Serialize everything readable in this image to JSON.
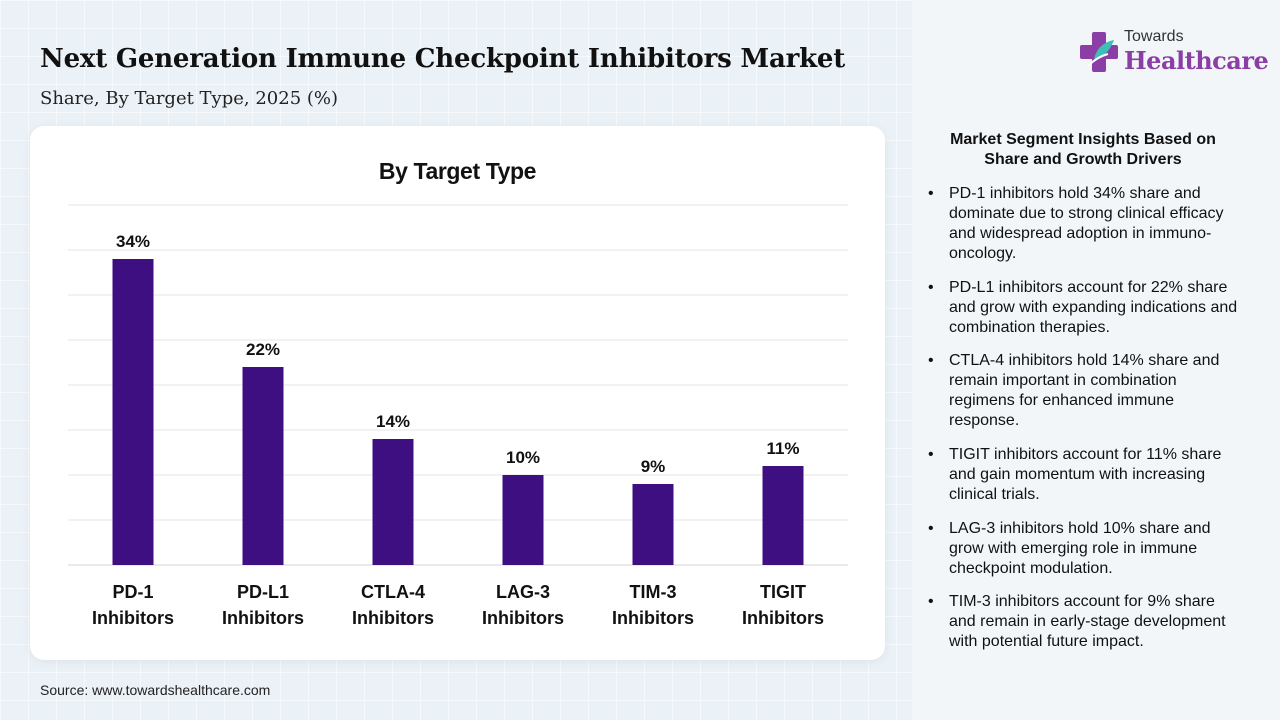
{
  "header": {
    "title": "Next Generation Immune Checkpoint Inhibitors Market",
    "subtitle": "Share, By Target Type, 2025 (%)"
  },
  "logo": {
    "small_text": "Towards",
    "big_text": "Healthcare",
    "icon": "medical-cross-icon",
    "colors": {
      "purple": "#8a3ea6",
      "teal": "#3dbfb8"
    }
  },
  "chart_data": {
    "type": "bar",
    "title": "By Target Type",
    "categories": [
      [
        "PD-1",
        "Inhibitors"
      ],
      [
        "PD-L1",
        "Inhibitors"
      ],
      [
        "CTLA-4",
        "Inhibitors"
      ],
      [
        "LAG-3",
        "Inhibitors"
      ],
      [
        "TIM-3",
        "Inhibitors"
      ],
      [
        "TIGIT",
        "Inhibitors"
      ]
    ],
    "values": [
      34,
      22,
      14,
      10,
      9,
      11
    ],
    "value_suffix": "%",
    "ylim": [
      0,
      40
    ],
    "grid": true,
    "bar_color": "#3d0f80"
  },
  "insights": {
    "title": "Market Segment Insights Based on Share and Growth Drivers",
    "items": [
      "PD-1 inhibitors hold 34% share and dominate due to strong clinical efficacy and widespread adoption in immuno-oncology.",
      "PD-L1 inhibitors account for 22% share and grow with expanding indications and combination therapies.",
      "CTLA-4 inhibitors hold 14% share and remain important in combination regimens for enhanced immune response.",
      "TIGIT inhibitors account for 11% share and gain momentum with increasing clinical trials.",
      "LAG-3 inhibitors hold 10% share and grow with emerging role in immune checkpoint modulation.",
      "TIM-3 inhibitors account for 9% share and remain in early-stage development with potential future impact."
    ]
  },
  "source": "Source: www.towardshealthcare.com"
}
